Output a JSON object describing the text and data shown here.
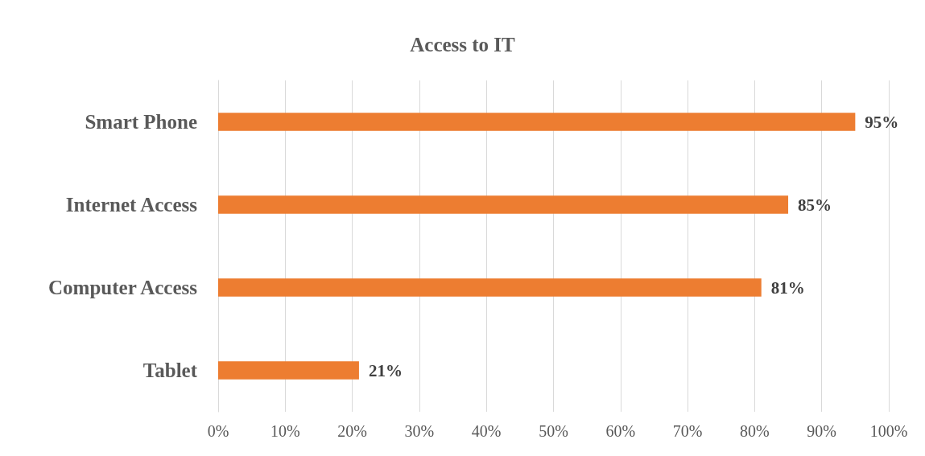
{
  "chart_data": {
    "type": "bar",
    "orientation": "horizontal",
    "title": "Access to IT",
    "categories": [
      "Smart Phone",
      "Internet Access",
      "Computer Access",
      "Tablet"
    ],
    "values": [
      95,
      85,
      81,
      21
    ],
    "color": "#ed7d31",
    "value_labels": [
      "95%",
      "85%",
      "81%",
      "21%"
    ],
    "xlim": [
      0,
      100
    ],
    "xticks": [
      {
        "value": 0,
        "label": "0%"
      },
      {
        "value": 10,
        "label": "10%"
      },
      {
        "value": 20,
        "label": "20%"
      },
      {
        "value": 30,
        "label": "30%"
      },
      {
        "value": 40,
        "label": "40%"
      },
      {
        "value": 50,
        "label": "50%"
      },
      {
        "value": 60,
        "label": "60%"
      },
      {
        "value": 70,
        "label": "70%"
      },
      {
        "value": 80,
        "label": "80%"
      },
      {
        "value": 90,
        "label": "90%"
      },
      {
        "value": 100,
        "label": "100%"
      }
    ],
    "grid": "x"
  }
}
